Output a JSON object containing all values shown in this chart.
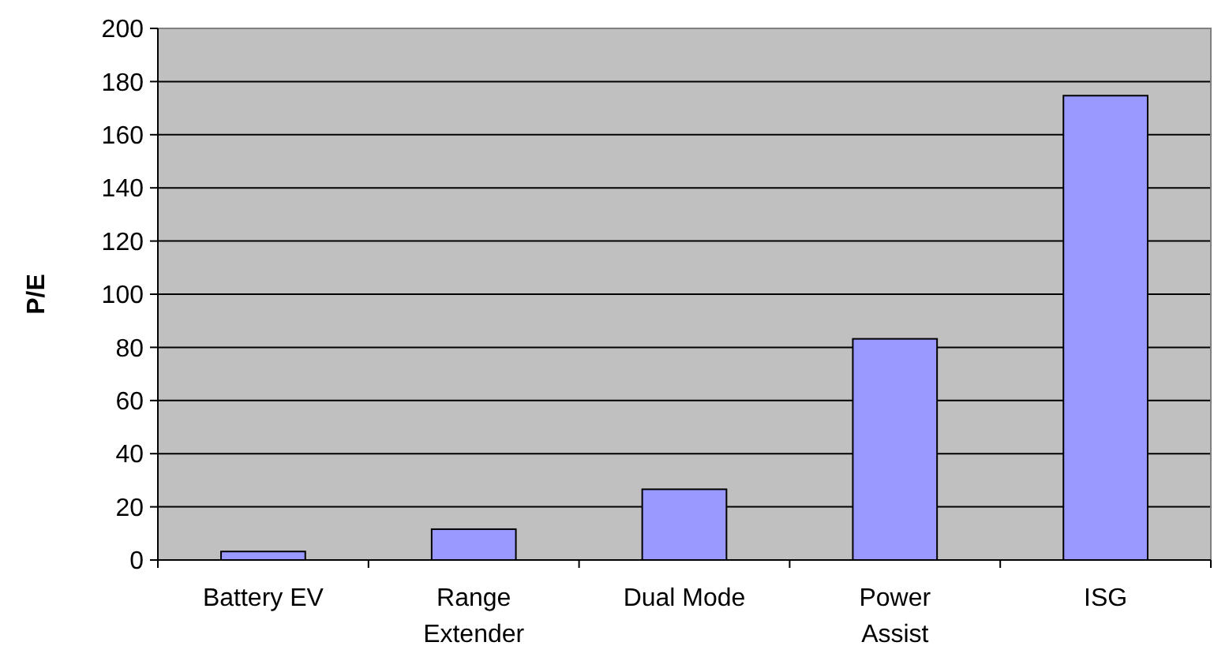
{
  "chart_data": {
    "type": "bar",
    "ylabel": "P/E",
    "categories": [
      "Battery EV",
      "Range\nExtender",
      "Dual Mode",
      "Power\nAssist",
      "ISG"
    ],
    "values": [
      3.2,
      11.6,
      26.6,
      83.2,
      174.7
    ],
    "color": "#9999ff",
    "ylim": [
      0,
      200
    ],
    "yticks": [
      0,
      20,
      40,
      60,
      80,
      100,
      120,
      140,
      160,
      180,
      200
    ],
    "grid": "y"
  }
}
